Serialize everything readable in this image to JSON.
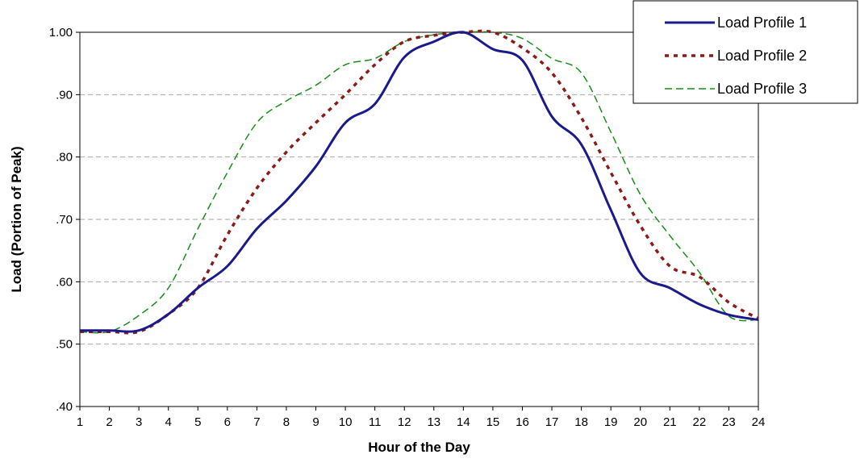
{
  "chart_data": {
    "type": "line",
    "title": "",
    "xlabel": "Hour of the Day",
    "ylabel": "Load (Portion of Peak)",
    "x": [
      1,
      2,
      3,
      4,
      5,
      6,
      7,
      8,
      9,
      10,
      11,
      12,
      13,
      14,
      15,
      16,
      17,
      18,
      19,
      20,
      21,
      22,
      23,
      24
    ],
    "x_tick_labels": [
      "1",
      "2",
      "3",
      "4",
      "5",
      "6",
      "7",
      "8",
      "9",
      "10",
      "11",
      "12",
      "13",
      "14",
      "15",
      "16",
      "17",
      "18",
      "19",
      "20",
      "21",
      "22",
      "23",
      "24"
    ],
    "xlim": [
      1,
      24
    ],
    "ylim": [
      0.4,
      1.0
    ],
    "y_ticks": [
      0.4,
      0.5,
      0.6,
      0.7,
      0.8,
      0.9,
      1.0
    ],
    "y_tick_labels": [
      ".40",
      ".50",
      ".60",
      ".70",
      ".80",
      ".90",
      "1.00"
    ],
    "grid": "horizontal dashed",
    "legend_position": "top-right",
    "series": [
      {
        "name": "Load Profile 1",
        "color": "#1a1a8c",
        "style": "solid",
        "values": [
          0.522,
          0.522,
          0.522,
          0.548,
          0.59,
          0.625,
          0.685,
          0.73,
          0.785,
          0.855,
          0.885,
          0.96,
          0.985,
          1.0,
          0.973,
          0.955,
          0.865,
          0.82,
          0.715,
          0.614,
          0.59,
          0.564,
          0.547,
          0.539
        ]
      },
      {
        "name": "Load Profile 2",
        "color": "#8b1a1a",
        "style": "dotted",
        "values": [
          0.52,
          0.52,
          0.52,
          0.548,
          0.59,
          0.675,
          0.75,
          0.808,
          0.855,
          0.9,
          0.948,
          0.985,
          0.995,
          1.0,
          1.0,
          0.975,
          0.935,
          0.863,
          0.775,
          0.69,
          0.625,
          0.608,
          0.567,
          0.541
        ]
      },
      {
        "name": "Load Profile 3",
        "color": "#1a8c1a",
        "style": "dashed",
        "values": [
          0.52,
          0.52,
          0.546,
          0.59,
          0.685,
          0.775,
          0.855,
          0.89,
          0.915,
          0.948,
          0.958,
          0.985,
          0.996,
          1.0,
          1.0,
          0.99,
          0.958,
          0.935,
          0.84,
          0.74,
          0.674,
          0.615,
          0.545,
          0.539
        ]
      }
    ]
  }
}
